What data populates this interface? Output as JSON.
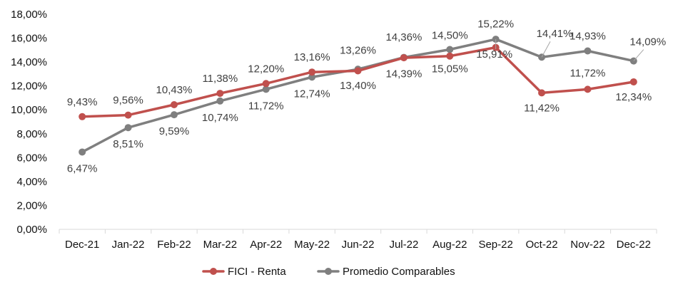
{
  "chart_data": {
    "type": "line",
    "categories": [
      "Dec-21",
      "Jan-22",
      "Feb-22",
      "Mar-22",
      "Apr-22",
      "May-22",
      "Jun-22",
      "Jul-22",
      "Aug-22",
      "Sep-22",
      "Oct-22",
      "Nov-22",
      "Dec-22"
    ],
    "y_ticks": [
      "0,00%",
      "2,00%",
      "4,00%",
      "6,00%",
      "8,00%",
      "10,00%",
      "12,00%",
      "14,00%",
      "16,00%",
      "18,00%"
    ],
    "ylim": [
      0,
      18
    ],
    "grid": false,
    "legend_position": "bottom",
    "series": [
      {
        "name": "FICI - Renta",
        "color": "#c0504d",
        "values": [
          9.43,
          9.56,
          10.43,
          11.38,
          12.2,
          13.16,
          13.26,
          14.36,
          14.5,
          15.22,
          11.42,
          11.72,
          12.34
        ],
        "labels": [
          "9,43%",
          "9,56%",
          "10,43%",
          "11,38%",
          "12,20%",
          "13,16%",
          "13,26%",
          "14,36%",
          "14,50%",
          "15,22%",
          "11,42%",
          "11,72%",
          "12,34%"
        ]
      },
      {
        "name": "Promedio Comparables",
        "color": "#7f7f7f",
        "values": [
          6.47,
          8.51,
          9.59,
          10.74,
          11.72,
          12.74,
          13.4,
          14.39,
          15.05,
          15.91,
          14.41,
          14.93,
          14.09
        ],
        "labels": [
          "6,47%",
          "8,51%",
          "9,59%",
          "10,74%",
          "11,72%",
          "12,74%",
          "13,40%",
          "14,39%",
          "15,05%",
          "15,91%",
          "14,41%",
          "14,93%",
          "14,09%"
        ]
      }
    ]
  }
}
